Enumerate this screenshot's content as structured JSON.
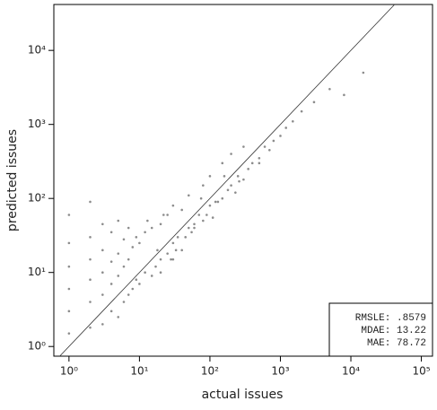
{
  "chart_data": {
    "type": "scatter",
    "x_label": "actual issues",
    "y_label": "predicted issues",
    "log_x": true,
    "log_y": true,
    "xlim": [
      0.61,
      144000
    ],
    "ylim": [
      0.74,
      41700
    ],
    "xticks": [
      {
        "value": 1,
        "label": "10⁰"
      },
      {
        "value": 10,
        "label": "10¹"
      },
      {
        "value": 100,
        "label": "10²"
      },
      {
        "value": 1000,
        "label": "10³"
      },
      {
        "value": 10000,
        "label": "10⁴"
      },
      {
        "value": 100000,
        "label": "10⁵"
      }
    ],
    "yticks": [
      {
        "value": 1,
        "label": "10⁰"
      },
      {
        "value": 10,
        "label": "10¹"
      },
      {
        "value": 100,
        "label": "10²"
      },
      {
        "value": 1000,
        "label": "10³"
      },
      {
        "value": 10000,
        "label": "10⁴"
      }
    ],
    "color": "rgba(0,0,0,0.45)",
    "annotations": [
      "RMSLE: .8579",
      "MDAE: 13.22",
      "MAE: 78.72"
    ],
    "x": [
      1,
      1,
      1,
      1,
      1,
      1,
      2,
      2,
      2,
      2,
      2,
      2,
      3,
      3,
      3,
      3,
      3,
      4,
      4,
      4,
      4,
      5,
      5,
      5,
      5,
      6,
      6,
      6,
      7,
      7,
      7,
      8,
      8,
      9,
      9,
      10,
      10,
      12,
      12,
      15,
      15,
      18,
      20,
      20,
      25,
      25,
      30,
      30,
      35,
      40,
      40,
      50,
      50,
      60,
      70,
      80,
      80,
      100,
      100,
      120,
      150,
      150,
      200,
      200,
      250,
      300,
      300,
      400,
      500,
      600,
      800,
      1000,
      1200,
      1500,
      2000,
      3000,
      5000,
      8000,
      15000,
      20,
      30,
      45,
      60,
      90,
      130,
      180,
      260,
      350,
      500,
      700,
      13,
      17,
      22,
      28,
      33,
      55,
      75,
      110,
      160,
      230
    ],
    "y": [
      1.5,
      3,
      6,
      12,
      25,
      60,
      1.8,
      4,
      8,
      15,
      30,
      90,
      2,
      5,
      10,
      20,
      45,
      3,
      7,
      14,
      35,
      2.5,
      9,
      18,
      50,
      4,
      12,
      28,
      5,
      15,
      40,
      6,
      22,
      8,
      30,
      7,
      25,
      10,
      35,
      9,
      40,
      20,
      15,
      45,
      18,
      60,
      25,
      80,
      30,
      20,
      70,
      40,
      110,
      45,
      60,
      50,
      150,
      80,
      200,
      90,
      100,
      300,
      150,
      400,
      200,
      180,
      500,
      300,
      350,
      500,
      600,
      700,
      900,
      1100,
      1500,
      2000,
      3000,
      2500,
      5000,
      10,
      15,
      30,
      40,
      60,
      90,
      130,
      170,
      250,
      300,
      450,
      50,
      12,
      60,
      15,
      20,
      35,
      100,
      55,
      200,
      120
    ]
  }
}
